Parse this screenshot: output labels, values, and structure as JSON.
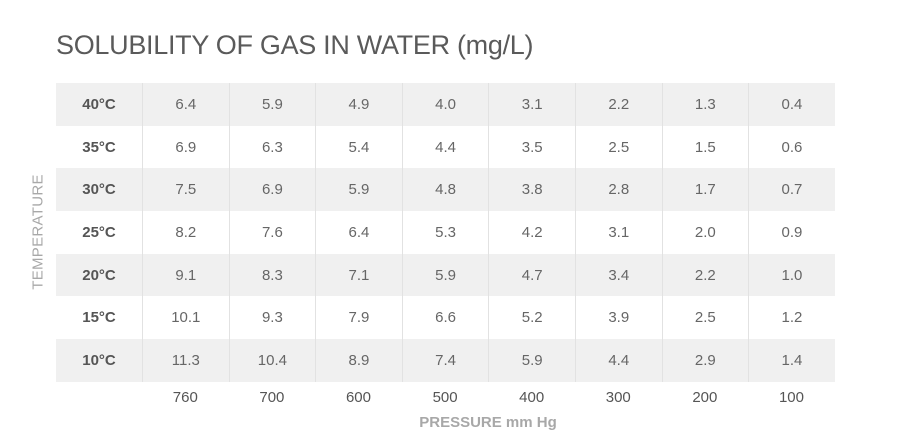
{
  "title": "SOLUBILITY OF GAS IN WATER (mg/L)",
  "ylabel": "TEMPERATURE",
  "xlabel": "PRESSURE mm Hg",
  "columns": [
    "760",
    "700",
    "600",
    "500",
    "400",
    "300",
    "200",
    "100"
  ],
  "rows": [
    {
      "label": "40°C",
      "values": [
        "6.4",
        "5.9",
        "4.9",
        "4.0",
        "3.1",
        "2.2",
        "1.3",
        "0.4"
      ]
    },
    {
      "label": "35°C",
      "values": [
        "6.9",
        "6.3",
        "5.4",
        "4.4",
        "3.5",
        "2.5",
        "1.5",
        "0.6"
      ]
    },
    {
      "label": "30°C",
      "values": [
        "7.5",
        "6.9",
        "5.9",
        "4.8",
        "3.8",
        "2.8",
        "1.7",
        "0.7"
      ]
    },
    {
      "label": "25°C",
      "values": [
        "8.2",
        "7.6",
        "6.4",
        "5.3",
        "4.2",
        "3.1",
        "2.0",
        "0.9"
      ]
    },
    {
      "label": "20°C",
      "values": [
        "9.1",
        "8.3",
        "7.1",
        "5.9",
        "4.7",
        "3.4",
        "2.2",
        "1.0"
      ]
    },
    {
      "label": "15°C",
      "values": [
        "10.1",
        "9.3",
        "7.9",
        "6.6",
        "5.2",
        "3.9",
        "2.5",
        "1.2"
      ]
    },
    {
      "label": "10°C",
      "values": [
        "11.3",
        "10.4",
        "8.9",
        "7.4",
        "5.9",
        "4.4",
        "2.9",
        "1.4"
      ]
    }
  ],
  "colors": {
    "shaded_row": "#f0f0f0",
    "gridline": "#e2e2e2",
    "title": "#5a5a5a",
    "axis_label": "#a8a8a8"
  },
  "chart_data": {
    "type": "table",
    "title": "SOLUBILITY OF GAS IN WATER (mg/L)",
    "xlabel": "PRESSURE mm Hg",
    "ylabel": "TEMPERATURE",
    "categories": [
      760,
      700,
      600,
      500,
      400,
      300,
      200,
      100
    ],
    "series": [
      {
        "name": "40°C",
        "values": [
          6.4,
          5.9,
          4.9,
          4.0,
          3.1,
          2.2,
          1.3,
          0.4
        ]
      },
      {
        "name": "35°C",
        "values": [
          6.9,
          6.3,
          5.4,
          4.4,
          3.5,
          2.5,
          1.5,
          0.6
        ]
      },
      {
        "name": "30°C",
        "values": [
          7.5,
          6.9,
          5.9,
          4.8,
          3.8,
          2.8,
          1.7,
          0.7
        ]
      },
      {
        "name": "25°C",
        "values": [
          8.2,
          7.6,
          6.4,
          5.3,
          4.2,
          3.1,
          2.0,
          0.9
        ]
      },
      {
        "name": "20°C",
        "values": [
          9.1,
          8.3,
          7.1,
          5.9,
          4.7,
          3.4,
          2.2,
          1.0
        ]
      },
      {
        "name": "15°C",
        "values": [
          10.1,
          9.3,
          7.9,
          6.6,
          5.2,
          3.9,
          2.5,
          1.2
        ]
      },
      {
        "name": "10°C",
        "values": [
          11.3,
          10.4,
          8.9,
          7.4,
          5.9,
          4.4,
          2.9,
          1.4
        ]
      }
    ]
  }
}
